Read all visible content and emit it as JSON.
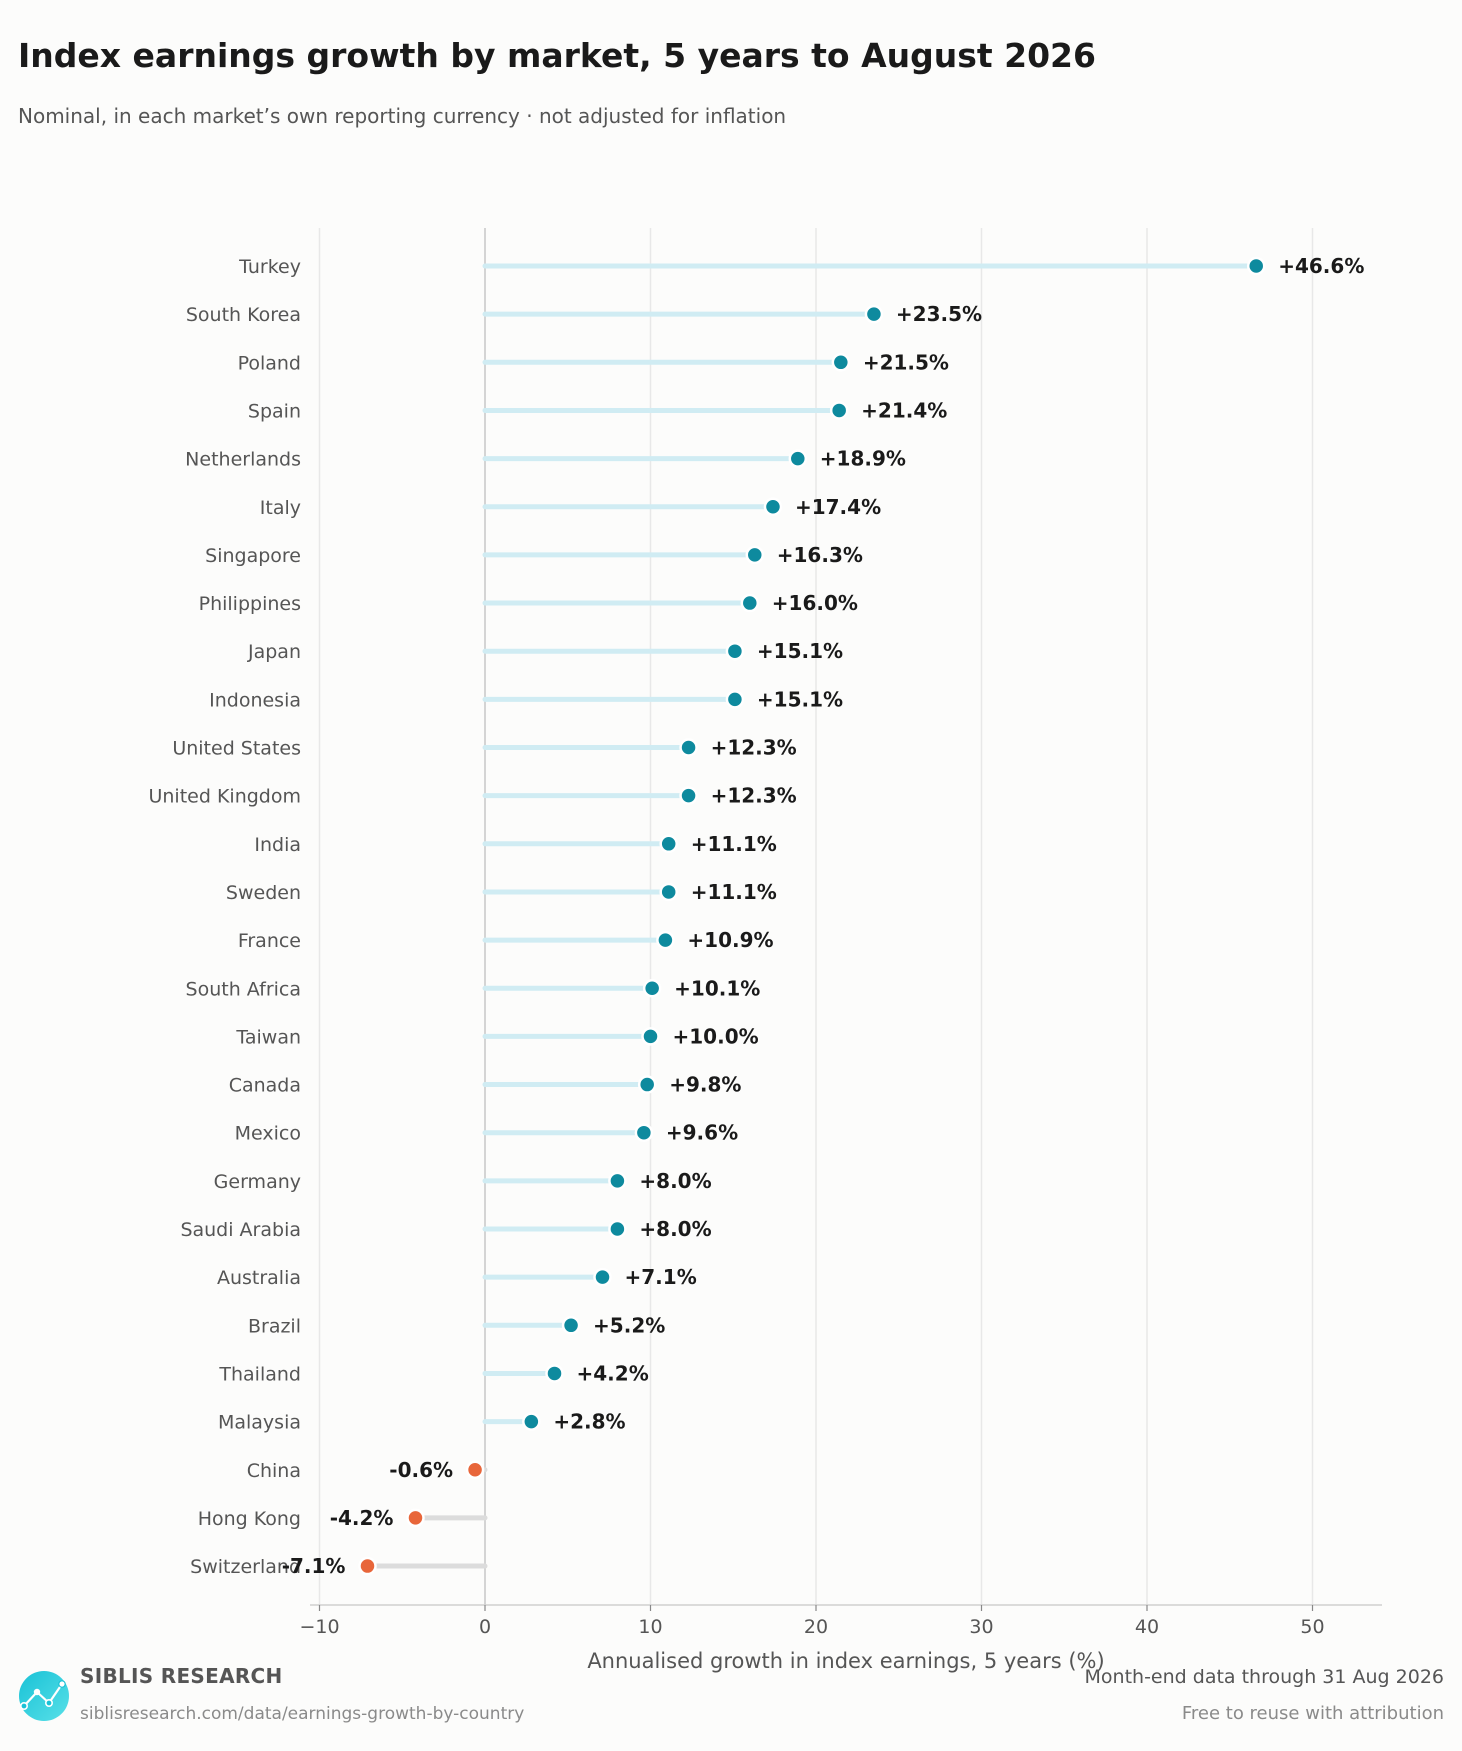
{
  "title": "Index earnings growth by market, 5 years to August 2026",
  "subtitle": "Nominal, in each market’s own reporting currency · not adjusted for inflation",
  "footer": {
    "brand": "SIBLIS RESEARCH",
    "url": "siblisresearch.com/data/earnings-growth-by-country",
    "data_note": "Month-end data through 31 Aug 2026",
    "license": "Free to reuse with attribution",
    "logo_icon": "siblis-logo-icon"
  },
  "colors": {
    "positive_dot": "#0e8a9e",
    "positive_stem": "#d0ecf3",
    "negative_dot": "#e8663a",
    "negative_stem": "#dcdcdc",
    "grid": "#e8e8e8",
    "axis": "#d0d0d0"
  },
  "chart_data": {
    "type": "lollipop",
    "xlabel": "Annualised growth in index earnings, 5 years (%)",
    "ylabel": "",
    "xlim": [
      -10,
      54
    ],
    "xticks": [
      -10,
      0,
      10,
      20,
      30,
      40,
      50
    ],
    "xtick_labels": [
      "−10",
      "0",
      "10",
      "20",
      "30",
      "40",
      "50"
    ],
    "grid": "vertical",
    "categories": [
      "Turkey",
      "South Korea",
      "Poland",
      "Spain",
      "Netherlands",
      "Italy",
      "Singapore",
      "Philippines",
      "Japan",
      "Indonesia",
      "United States",
      "United Kingdom",
      "India",
      "Sweden",
      "France",
      "South Africa",
      "Taiwan",
      "Canada",
      "Mexico",
      "Germany",
      "Saudi Arabia",
      "Australia",
      "Brazil",
      "Thailand",
      "Malaysia",
      "China",
      "Hong Kong",
      "Switzerland"
    ],
    "values": [
      46.6,
      23.5,
      21.5,
      21.4,
      18.9,
      17.4,
      16.3,
      16.0,
      15.1,
      15.1,
      12.3,
      12.3,
      11.1,
      11.1,
      10.9,
      10.1,
      10.0,
      9.8,
      9.6,
      8.0,
      8.0,
      7.1,
      5.2,
      4.2,
      2.8,
      -0.6,
      -4.2,
      -7.1
    ],
    "data_labels": [
      "+46.6%",
      "+23.5%",
      "+21.5%",
      "+21.4%",
      "+18.9%",
      "+17.4%",
      "+16.3%",
      "+16.0%",
      "+15.1%",
      "+15.1%",
      "+12.3%",
      "+12.3%",
      "+11.1%",
      "+11.1%",
      "+10.9%",
      "+10.1%",
      "+10.0%",
      "+9.8%",
      "+9.6%",
      "+8.0%",
      "+8.0%",
      "+7.1%",
      "+5.2%",
      "+4.2%",
      "+2.8%",
      "-0.6%",
      "-4.2%",
      "-7.1%"
    ]
  }
}
